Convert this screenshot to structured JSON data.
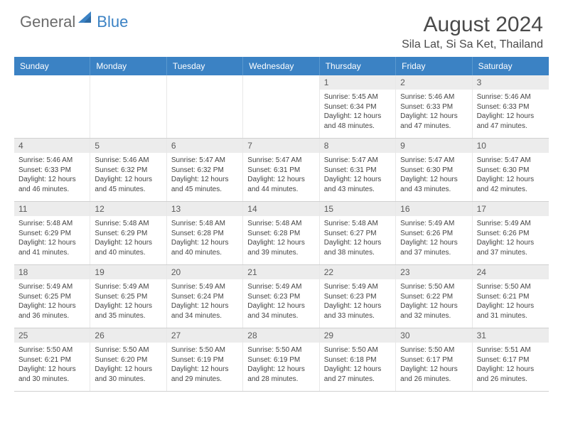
{
  "brand": {
    "part1": "General",
    "part2": "Blue"
  },
  "title": "August 2024",
  "location": "Sila Lat, Si Sa Ket, Thailand",
  "colors": {
    "header_bg": "#3b82c4",
    "header_text": "#ffffff",
    "daynum_bg": "#ececec",
    "body_text": "#333333"
  },
  "dayNames": [
    "Sunday",
    "Monday",
    "Tuesday",
    "Wednesday",
    "Thursday",
    "Friday",
    "Saturday"
  ],
  "weeks": [
    [
      null,
      null,
      null,
      null,
      {
        "n": "1",
        "sr": "Sunrise: 5:45 AM",
        "ss": "Sunset: 6:34 PM",
        "d1": "Daylight: 12 hours",
        "d2": "and 48 minutes."
      },
      {
        "n": "2",
        "sr": "Sunrise: 5:46 AM",
        "ss": "Sunset: 6:33 PM",
        "d1": "Daylight: 12 hours",
        "d2": "and 47 minutes."
      },
      {
        "n": "3",
        "sr": "Sunrise: 5:46 AM",
        "ss": "Sunset: 6:33 PM",
        "d1": "Daylight: 12 hours",
        "d2": "and 47 minutes."
      }
    ],
    [
      {
        "n": "4",
        "sr": "Sunrise: 5:46 AM",
        "ss": "Sunset: 6:33 PM",
        "d1": "Daylight: 12 hours",
        "d2": "and 46 minutes."
      },
      {
        "n": "5",
        "sr": "Sunrise: 5:46 AM",
        "ss": "Sunset: 6:32 PM",
        "d1": "Daylight: 12 hours",
        "d2": "and 45 minutes."
      },
      {
        "n": "6",
        "sr": "Sunrise: 5:47 AM",
        "ss": "Sunset: 6:32 PM",
        "d1": "Daylight: 12 hours",
        "d2": "and 45 minutes."
      },
      {
        "n": "7",
        "sr": "Sunrise: 5:47 AM",
        "ss": "Sunset: 6:31 PM",
        "d1": "Daylight: 12 hours",
        "d2": "and 44 minutes."
      },
      {
        "n": "8",
        "sr": "Sunrise: 5:47 AM",
        "ss": "Sunset: 6:31 PM",
        "d1": "Daylight: 12 hours",
        "d2": "and 43 minutes."
      },
      {
        "n": "9",
        "sr": "Sunrise: 5:47 AM",
        "ss": "Sunset: 6:30 PM",
        "d1": "Daylight: 12 hours",
        "d2": "and 43 minutes."
      },
      {
        "n": "10",
        "sr": "Sunrise: 5:47 AM",
        "ss": "Sunset: 6:30 PM",
        "d1": "Daylight: 12 hours",
        "d2": "and 42 minutes."
      }
    ],
    [
      {
        "n": "11",
        "sr": "Sunrise: 5:48 AM",
        "ss": "Sunset: 6:29 PM",
        "d1": "Daylight: 12 hours",
        "d2": "and 41 minutes."
      },
      {
        "n": "12",
        "sr": "Sunrise: 5:48 AM",
        "ss": "Sunset: 6:29 PM",
        "d1": "Daylight: 12 hours",
        "d2": "and 40 minutes."
      },
      {
        "n": "13",
        "sr": "Sunrise: 5:48 AM",
        "ss": "Sunset: 6:28 PM",
        "d1": "Daylight: 12 hours",
        "d2": "and 40 minutes."
      },
      {
        "n": "14",
        "sr": "Sunrise: 5:48 AM",
        "ss": "Sunset: 6:28 PM",
        "d1": "Daylight: 12 hours",
        "d2": "and 39 minutes."
      },
      {
        "n": "15",
        "sr": "Sunrise: 5:48 AM",
        "ss": "Sunset: 6:27 PM",
        "d1": "Daylight: 12 hours",
        "d2": "and 38 minutes."
      },
      {
        "n": "16",
        "sr": "Sunrise: 5:49 AM",
        "ss": "Sunset: 6:26 PM",
        "d1": "Daylight: 12 hours",
        "d2": "and 37 minutes."
      },
      {
        "n": "17",
        "sr": "Sunrise: 5:49 AM",
        "ss": "Sunset: 6:26 PM",
        "d1": "Daylight: 12 hours",
        "d2": "and 37 minutes."
      }
    ],
    [
      {
        "n": "18",
        "sr": "Sunrise: 5:49 AM",
        "ss": "Sunset: 6:25 PM",
        "d1": "Daylight: 12 hours",
        "d2": "and 36 minutes."
      },
      {
        "n": "19",
        "sr": "Sunrise: 5:49 AM",
        "ss": "Sunset: 6:25 PM",
        "d1": "Daylight: 12 hours",
        "d2": "and 35 minutes."
      },
      {
        "n": "20",
        "sr": "Sunrise: 5:49 AM",
        "ss": "Sunset: 6:24 PM",
        "d1": "Daylight: 12 hours",
        "d2": "and 34 minutes."
      },
      {
        "n": "21",
        "sr": "Sunrise: 5:49 AM",
        "ss": "Sunset: 6:23 PM",
        "d1": "Daylight: 12 hours",
        "d2": "and 34 minutes."
      },
      {
        "n": "22",
        "sr": "Sunrise: 5:49 AM",
        "ss": "Sunset: 6:23 PM",
        "d1": "Daylight: 12 hours",
        "d2": "and 33 minutes."
      },
      {
        "n": "23",
        "sr": "Sunrise: 5:50 AM",
        "ss": "Sunset: 6:22 PM",
        "d1": "Daylight: 12 hours",
        "d2": "and 32 minutes."
      },
      {
        "n": "24",
        "sr": "Sunrise: 5:50 AM",
        "ss": "Sunset: 6:21 PM",
        "d1": "Daylight: 12 hours",
        "d2": "and 31 minutes."
      }
    ],
    [
      {
        "n": "25",
        "sr": "Sunrise: 5:50 AM",
        "ss": "Sunset: 6:21 PM",
        "d1": "Daylight: 12 hours",
        "d2": "and 30 minutes."
      },
      {
        "n": "26",
        "sr": "Sunrise: 5:50 AM",
        "ss": "Sunset: 6:20 PM",
        "d1": "Daylight: 12 hours",
        "d2": "and 30 minutes."
      },
      {
        "n": "27",
        "sr": "Sunrise: 5:50 AM",
        "ss": "Sunset: 6:19 PM",
        "d1": "Daylight: 12 hours",
        "d2": "and 29 minutes."
      },
      {
        "n": "28",
        "sr": "Sunrise: 5:50 AM",
        "ss": "Sunset: 6:19 PM",
        "d1": "Daylight: 12 hours",
        "d2": "and 28 minutes."
      },
      {
        "n": "29",
        "sr": "Sunrise: 5:50 AM",
        "ss": "Sunset: 6:18 PM",
        "d1": "Daylight: 12 hours",
        "d2": "and 27 minutes."
      },
      {
        "n": "30",
        "sr": "Sunrise: 5:50 AM",
        "ss": "Sunset: 6:17 PM",
        "d1": "Daylight: 12 hours",
        "d2": "and 26 minutes."
      },
      {
        "n": "31",
        "sr": "Sunrise: 5:51 AM",
        "ss": "Sunset: 6:17 PM",
        "d1": "Daylight: 12 hours",
        "d2": "and 26 minutes."
      }
    ]
  ]
}
